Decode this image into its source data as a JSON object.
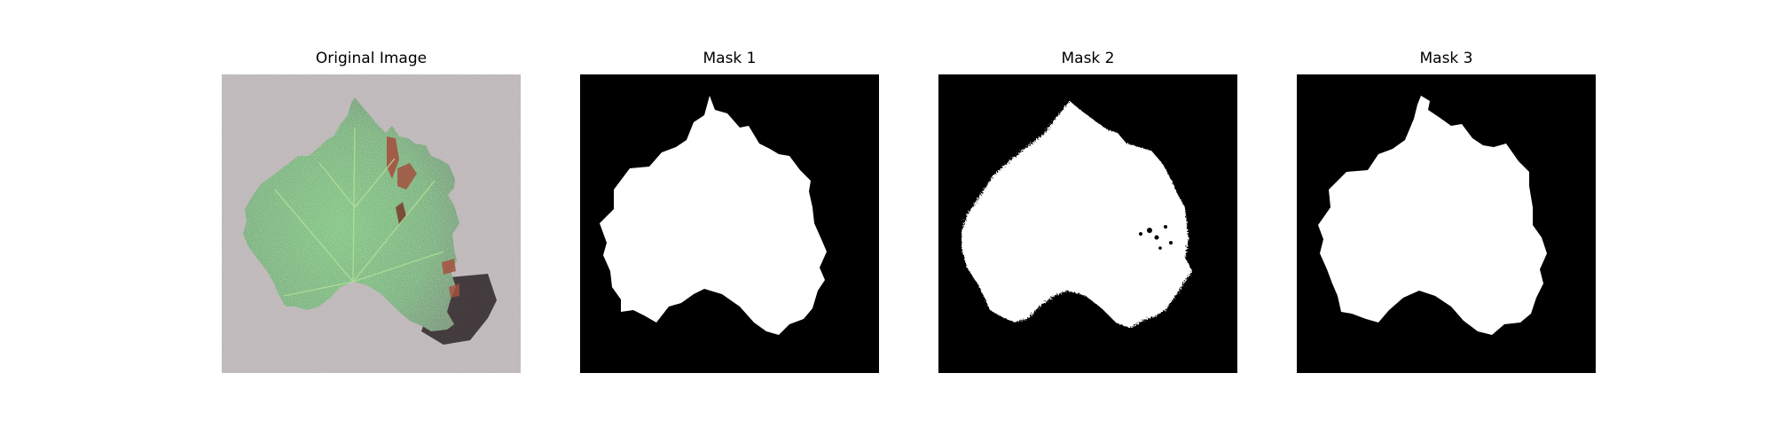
{
  "figure": {
    "panels": [
      {
        "title": "Original Image",
        "kind": "photo"
      },
      {
        "title": "Mask 1",
        "kind": "mask"
      },
      {
        "title": "Mask 2",
        "kind": "mask"
      },
      {
        "title": "Mask 3",
        "kind": "mask"
      }
    ]
  },
  "colors": {
    "background": "#ffffff",
    "mask_background": "#000000",
    "mask_foreground": "#ffffff",
    "leaf_green": "#2f9e3a",
    "leaf_dark": "#1c6a25",
    "lesion": "#a5513f",
    "surface": "#c9c2c4"
  }
}
